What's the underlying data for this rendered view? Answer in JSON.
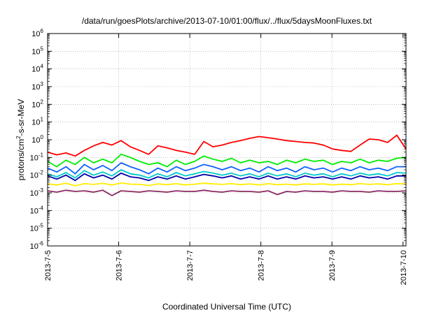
{
  "chart_data": {
    "type": "line",
    "title": "/data/run/goesPlots/archive/2013-07-10/01:00/flux/../flux/5daysMoonFluxes.txt",
    "xlabel": "Coordinated Universal Time (UTC)",
    "ylabel": "protons/cm2-s-sr-MeV",
    "ylabel_parts": {
      "pre": "protons/cm",
      "sup": "2",
      "post": "-s-sr-MeV"
    },
    "yscale": "log",
    "ylim_exp": [
      -6,
      6
    ],
    "y_ticks": [
      {
        "base": "10",
        "exp": "6"
      },
      {
        "base": "10",
        "exp": "5"
      },
      {
        "base": "10",
        "exp": "4"
      },
      {
        "base": "10",
        "exp": "3"
      },
      {
        "base": "10",
        "exp": "2"
      },
      {
        "base": "10",
        "exp": "1"
      },
      {
        "base": "10",
        "exp": "0"
      },
      {
        "base": "10",
        "exp": "-1"
      },
      {
        "base": "10",
        "exp": "-2"
      },
      {
        "base": "10",
        "exp": "-3"
      },
      {
        "base": "10",
        "exp": "-4"
      },
      {
        "base": "10",
        "exp": "-5"
      },
      {
        "base": "10",
        "exp": "-6"
      }
    ],
    "xlim": [
      "2013-07-05 00:00",
      "2013-07-10 01:00"
    ],
    "x_ticks": [
      {
        "date": "2013-07-05",
        "label": "2013-7-5"
      },
      {
        "date": "2013-07-06",
        "label": "2013-7-6"
      },
      {
        "date": "2013-07-07",
        "label": "2013-7-7"
      },
      {
        "date": "2013-07-08",
        "label": "2013-7-8"
      },
      {
        "date": "2013-07-09",
        "label": "2013-7-9"
      },
      {
        "date": "2013-07-10",
        "label": "2013-7-10"
      }
    ],
    "grid": true,
    "grid_style": "dotted",
    "series": [
      {
        "color": "#ff0000",
        "values": [
          0.2,
          0.14,
          0.18,
          0.12,
          0.25,
          0.45,
          0.7,
          0.5,
          0.9,
          0.4,
          0.25,
          0.15,
          0.45,
          0.35,
          0.25,
          0.2,
          0.15,
          0.8,
          0.4,
          0.5,
          0.7,
          0.9,
          1.2,
          1.5,
          1.3,
          1.1,
          0.9,
          0.8,
          0.7,
          0.65,
          0.5,
          0.3,
          0.25,
          0.22,
          0.5,
          1.1,
          1.0,
          0.7,
          1.8,
          0.3
        ]
      },
      {
        "color": "#00ee00",
        "values": [
          0.06,
          0.03,
          0.07,
          0.04,
          0.1,
          0.05,
          0.08,
          0.05,
          0.15,
          0.1,
          0.06,
          0.04,
          0.05,
          0.03,
          0.07,
          0.04,
          0.06,
          0.12,
          0.08,
          0.06,
          0.09,
          0.05,
          0.07,
          0.05,
          0.06,
          0.04,
          0.07,
          0.05,
          0.08,
          0.06,
          0.07,
          0.04,
          0.06,
          0.05,
          0.08,
          0.05,
          0.07,
          0.06,
          0.09,
          0.1
        ]
      },
      {
        "color": "#1060ff",
        "values": [
          0.025,
          0.015,
          0.03,
          0.012,
          0.04,
          0.02,
          0.035,
          0.018,
          0.05,
          0.03,
          0.02,
          0.012,
          0.025,
          0.015,
          0.03,
          0.018,
          0.025,
          0.04,
          0.03,
          0.02,
          0.03,
          0.018,
          0.025,
          0.015,
          0.03,
          0.018,
          0.025,
          0.015,
          0.03,
          0.02,
          0.025,
          0.015,
          0.025,
          0.018,
          0.03,
          0.02,
          0.025,
          0.018,
          0.03,
          0.03
        ]
      },
      {
        "color": "#00cccc",
        "values": [
          0.012,
          0.008,
          0.014,
          0.007,
          0.018,
          0.01,
          0.015,
          0.009,
          0.02,
          0.012,
          0.01,
          0.007,
          0.012,
          0.008,
          0.014,
          0.009,
          0.012,
          0.016,
          0.013,
          0.01,
          0.013,
          0.009,
          0.012,
          0.008,
          0.013,
          0.009,
          0.012,
          0.008,
          0.013,
          0.01,
          0.012,
          0.008,
          0.012,
          0.009,
          0.013,
          0.01,
          0.012,
          0.009,
          0.014,
          0.013
        ]
      },
      {
        "color": "#0000aa",
        "values": [
          0.009,
          0.006,
          0.01,
          0.005,
          0.012,
          0.007,
          0.01,
          0.006,
          0.013,
          0.008,
          0.007,
          0.005,
          0.008,
          0.006,
          0.009,
          0.006,
          0.008,
          0.011,
          0.009,
          0.007,
          0.009,
          0.006,
          0.008,
          0.006,
          0.009,
          0.006,
          0.008,
          0.006,
          0.009,
          0.007,
          0.008,
          0.006,
          0.008,
          0.006,
          0.009,
          0.007,
          0.008,
          0.006,
          0.009,
          0.009
        ]
      },
      {
        "color": "#ffee00",
        "values": [
          0.0032,
          0.0028,
          0.0035,
          0.0025,
          0.0033,
          0.003,
          0.0034,
          0.0028,
          0.0036,
          0.0031,
          0.003,
          0.0026,
          0.0032,
          0.0029,
          0.0033,
          0.0028,
          0.0031,
          0.0035,
          0.0032,
          0.003,
          0.0033,
          0.0029,
          0.0032,
          0.0028,
          0.0033,
          0.0029,
          0.0031,
          0.0028,
          0.0032,
          0.003,
          0.0032,
          0.0028,
          0.0031,
          0.0029,
          0.0033,
          0.003,
          0.0032,
          0.0029,
          0.0033,
          0.0032
        ]
      },
      {
        "color": "#8b2a60",
        "values": [
          0.0013,
          0.0011,
          0.0014,
          0.0012,
          0.0013,
          0.0011,
          0.0014,
          0.0007,
          0.0013,
          0.0012,
          0.0011,
          0.0013,
          0.0012,
          0.0011,
          0.0013,
          0.0012,
          0.0012,
          0.0014,
          0.0012,
          0.0011,
          0.0013,
          0.0012,
          0.0012,
          0.0011,
          0.0013,
          0.0008,
          0.0012,
          0.0011,
          0.0013,
          0.0012,
          0.0012,
          0.0011,
          0.0013,
          0.0012,
          0.0012,
          0.0011,
          0.0013,
          0.0012,
          0.0012,
          0.0013
        ]
      }
    ]
  }
}
